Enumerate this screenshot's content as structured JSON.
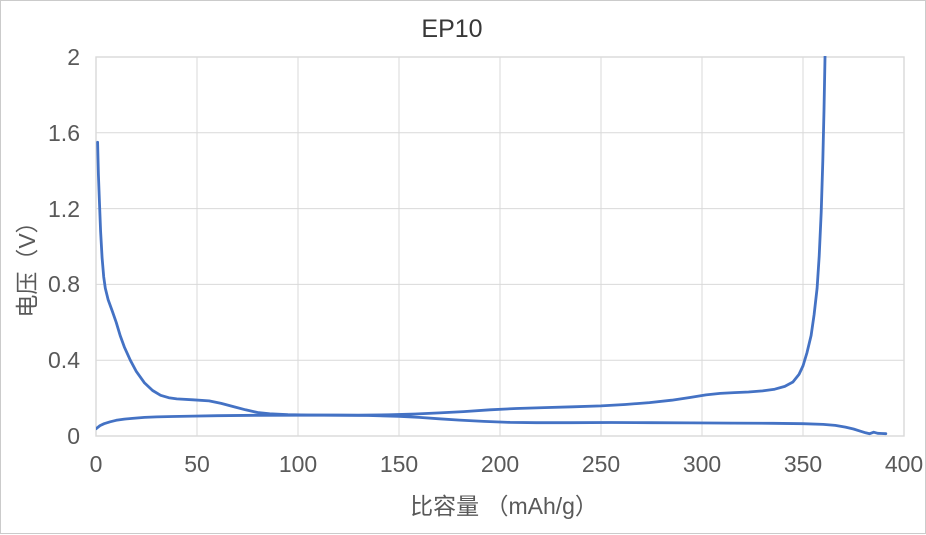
{
  "chart_data": {
    "type": "line",
    "title": "EP10",
    "xlabel": "比容量 （mAh/g）",
    "ylabel": "电压（V）",
    "xlim": [
      0,
      400
    ],
    "ylim": [
      0,
      2
    ],
    "xticks": [
      0,
      50,
      100,
      150,
      200,
      250,
      300,
      350,
      400
    ],
    "yticks": [
      0,
      0.4,
      0.8,
      1.2,
      1.6,
      2
    ],
    "grid": true,
    "legend": "none",
    "series": [
      {
        "name": "series-1",
        "points": [
          [
            0.8,
            1.55
          ],
          [
            1.2,
            1.38
          ],
          [
            1.7,
            1.24
          ],
          [
            2.3,
            1.08
          ],
          [
            3,
            0.94
          ],
          [
            3.8,
            0.84
          ],
          [
            4.6,
            0.78
          ],
          [
            6,
            0.72
          ],
          [
            8,
            0.66
          ],
          [
            10,
            0.6
          ],
          [
            12,
            0.53
          ],
          [
            14,
            0.47
          ],
          [
            17,
            0.4
          ],
          [
            20,
            0.34
          ],
          [
            24,
            0.28
          ],
          [
            28,
            0.24
          ],
          [
            32,
            0.215
          ],
          [
            36,
            0.202
          ],
          [
            40,
            0.196
          ],
          [
            48,
            0.191
          ],
          [
            56,
            0.185
          ],
          [
            62,
            0.172
          ],
          [
            68,
            0.155
          ],
          [
            74,
            0.138
          ],
          [
            80,
            0.124
          ],
          [
            86,
            0.117
          ],
          [
            95,
            0.113
          ],
          [
            105,
            0.111
          ],
          [
            120,
            0.11
          ],
          [
            135,
            0.108
          ],
          [
            150,
            0.104
          ],
          [
            160,
            0.098
          ],
          [
            170,
            0.091
          ],
          [
            180,
            0.084
          ],
          [
            192,
            0.077
          ],
          [
            205,
            0.072
          ],
          [
            218,
            0.07
          ],
          [
            235,
            0.07
          ],
          [
            255,
            0.071
          ],
          [
            275,
            0.07
          ],
          [
            295,
            0.069
          ],
          [
            315,
            0.068
          ],
          [
            335,
            0.067
          ],
          [
            350,
            0.065
          ],
          [
            360,
            0.061
          ],
          [
            366,
            0.056
          ],
          [
            371,
            0.047
          ],
          [
            375,
            0.037
          ],
          [
            378,
            0.027
          ],
          [
            381,
            0.017
          ],
          [
            383,
            0.012
          ],
          [
            385,
            0.02
          ],
          [
            387,
            0.014
          ],
          [
            389,
            0.013
          ],
          [
            391,
            0.012
          ]
        ]
      },
      {
        "name": "series-2",
        "points": [
          [
            0,
            0.038
          ],
          [
            2,
            0.055
          ],
          [
            4,
            0.065
          ],
          [
            7,
            0.075
          ],
          [
            10,
            0.083
          ],
          [
            14,
            0.089
          ],
          [
            18,
            0.093
          ],
          [
            24,
            0.098
          ],
          [
            30,
            0.101
          ],
          [
            38,
            0.103
          ],
          [
            48,
            0.105
          ],
          [
            60,
            0.107
          ],
          [
            80,
            0.109
          ],
          [
            100,
            0.11
          ],
          [
            115,
            0.11
          ],
          [
            130,
            0.11
          ],
          [
            145,
            0.112
          ],
          [
            158,
            0.116
          ],
          [
            170,
            0.122
          ],
          [
            182,
            0.129
          ],
          [
            195,
            0.138
          ],
          [
            208,
            0.145
          ],
          [
            222,
            0.15
          ],
          [
            236,
            0.154
          ],
          [
            250,
            0.159
          ],
          [
            262,
            0.166
          ],
          [
            274,
            0.176
          ],
          [
            285,
            0.189
          ],
          [
            294,
            0.203
          ],
          [
            302,
            0.217
          ],
          [
            309,
            0.225
          ],
          [
            316,
            0.229
          ],
          [
            323,
            0.232
          ],
          [
            330,
            0.238
          ],
          [
            336,
            0.247
          ],
          [
            341,
            0.262
          ],
          [
            345,
            0.285
          ],
          [
            348,
            0.325
          ],
          [
            350,
            0.37
          ],
          [
            352,
            0.44
          ],
          [
            354,
            0.53
          ],
          [
            355.5,
            0.64
          ],
          [
            357,
            0.78
          ],
          [
            358,
            0.95
          ],
          [
            359,
            1.18
          ],
          [
            359.8,
            1.45
          ],
          [
            360.4,
            1.72
          ],
          [
            361,
            2.05
          ]
        ]
      }
    ]
  },
  "colors": {
    "series_blue": "#4472C4",
    "gridline": "#D9D9D9",
    "plot_border": "#D9D9D9",
    "tick_text": "#595959",
    "axis_title_text": "#595959",
    "title_text": "#383838",
    "background": "#FFFFFF",
    "outer_border": "#CBCBCB"
  }
}
